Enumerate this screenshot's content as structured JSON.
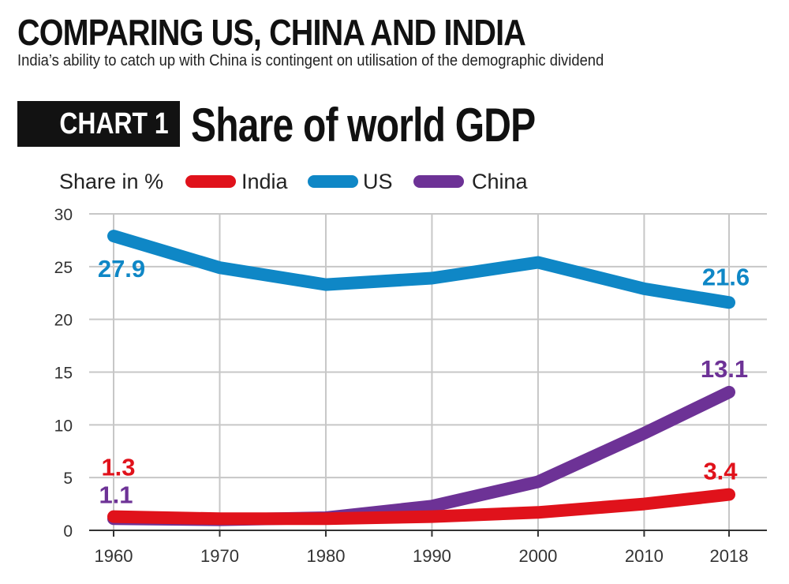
{
  "header": {
    "headline": "COMPARING US, CHINA AND INDIA",
    "subhead": "India’s ability to catch up with China is contingent on utilisation of the demographic dividend",
    "chart_badge": "CHART 1",
    "chart_title": "Share of world GDP"
  },
  "colors": {
    "India": "#e0121b",
    "US": "#0f87c6",
    "China": "#6d3296",
    "grid": "#c7c7c7",
    "axis": "#333333"
  },
  "chart_data": {
    "type": "line",
    "title": "Share of world GDP",
    "ylabel": "Share in %",
    "xlabel": "",
    "x": [
      1960,
      1970,
      1980,
      1990,
      2000,
      2010,
      2018
    ],
    "x_tick_labels": [
      "1960",
      "1970",
      "1980",
      "1990",
      "2000",
      "2010",
      "2018"
    ],
    "ylim": [
      0,
      30
    ],
    "y_ticks": [
      0,
      5,
      10,
      15,
      20,
      25,
      30
    ],
    "grid": true,
    "legend_position": "top",
    "series": [
      {
        "name": "US",
        "values": [
          27.9,
          24.9,
          23.3,
          23.9,
          25.4,
          22.9,
          21.6
        ]
      },
      {
        "name": "China",
        "values": [
          1.1,
          1.0,
          1.2,
          2.3,
          4.6,
          9.2,
          13.1
        ]
      },
      {
        "name": "India",
        "values": [
          1.3,
          1.1,
          1.1,
          1.3,
          1.7,
          2.5,
          3.4
        ]
      }
    ],
    "data_labels": [
      {
        "series": "US",
        "x": 1960,
        "text": "27.9"
      },
      {
        "series": "US",
        "x": 2018,
        "text": "21.6"
      },
      {
        "series": "China",
        "x": 2018,
        "text": "13.1"
      },
      {
        "series": "India",
        "x": 2018,
        "text": "3.4"
      },
      {
        "series": "India",
        "x": 1960,
        "text": "1.3"
      },
      {
        "series": "China",
        "x": 1960,
        "text": "1.1"
      }
    ],
    "legend": [
      "India",
      "US",
      "China"
    ]
  }
}
